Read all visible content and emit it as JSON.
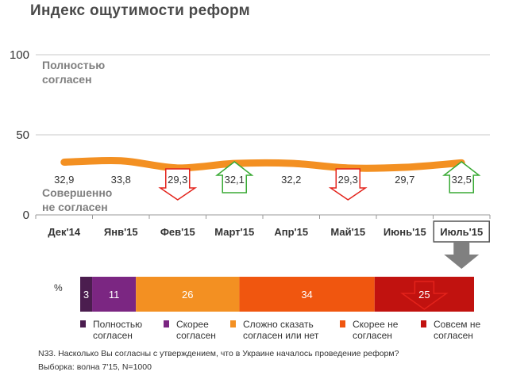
{
  "title": "Индекс ощутимости реформ",
  "chart_data": {
    "type": "line",
    "categories": [
      "Дек'14",
      "Янв'15",
      "Фев'15",
      "Март'15",
      "Апр'15",
      "Май'15",
      "Июнь'15",
      "Июль'15"
    ],
    "values": [
      32.9,
      33.8,
      29.3,
      32.1,
      32.2,
      29.3,
      29.7,
      32.5
    ],
    "value_labels": [
      "32,9",
      "33,8",
      "29,3",
      "32,1",
      "32,2",
      "29,3",
      "29,7",
      "32,5"
    ],
    "change_markers": [
      "none",
      "none",
      "down",
      "up",
      "none",
      "down",
      "none",
      "up"
    ],
    "y_ticks": [
      "0",
      "50",
      "100"
    ],
    "ylim": [
      0,
      100
    ],
    "grid": true,
    "highlighted_category": "Июль'15",
    "annotation_top": [
      "Полностью",
      "согласен"
    ],
    "annotation_bottom": [
      "Совершенно",
      "не согласен"
    ],
    "line_color": "#f39022",
    "up_arrow_color": "#3aaa35",
    "down_arrow_color": "#e3231b",
    "breakdown": {
      "unit_label": "%",
      "segments": [
        {
          "name": "Полностью согласен",
          "value": 3,
          "label": "3",
          "color": "#4b1d4f"
        },
        {
          "name": "Скорее согласен",
          "value": 11,
          "label": "11",
          "color": "#7b2682"
        },
        {
          "name": "Сложно сказать согласен или нет",
          "value": 26,
          "label": "26",
          "color": "#f39022"
        },
        {
          "name": "Скорее не согласен",
          "value": 34,
          "label": "34",
          "color": "#f0560f"
        },
        {
          "name": "Совсем не согласен",
          "value": 25,
          "label": "25",
          "color": "#c1120f"
        }
      ],
      "legend": [
        {
          "lines": [
            "Полностью",
            "согласен"
          ],
          "color": "#4b1d4f"
        },
        {
          "lines": [
            "Скорее",
            "согласен"
          ],
          "color": "#7b2682"
        },
        {
          "lines": [
            "Сложно сказать",
            "согласен или нет"
          ],
          "color": "#f39022"
        },
        {
          "lines": [
            "Скорее не",
            "согласен"
          ],
          "color": "#f0560f"
        },
        {
          "lines": [
            "Совсем не",
            "согласен"
          ],
          "color": "#c1120f"
        }
      ],
      "marked_segment_index": 4
    }
  },
  "footnote": {
    "question": "N33. Насколько Вы согласны с утверждением, что в Украине началось проведение реформ?",
    "sample": "Выборка: волна 7'15, N=1000"
  }
}
